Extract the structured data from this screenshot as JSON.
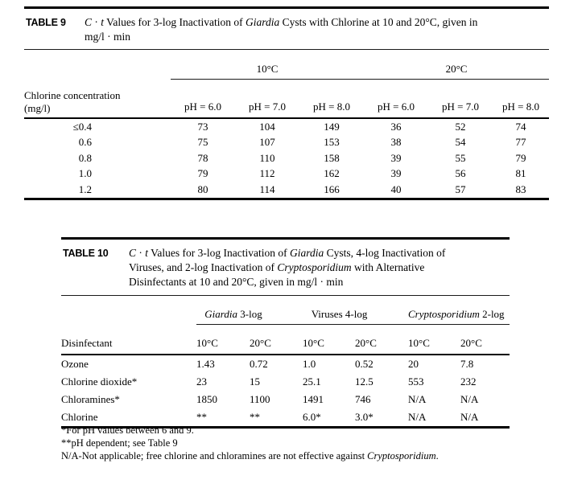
{
  "page": {
    "background": "#ffffff",
    "text_color": "#000000"
  },
  "table9": {
    "label": "TABLE 9",
    "title": [
      [
        {
          "t": "C",
          "i": true
        },
        {
          "t": " · ",
          "i": false
        },
        {
          "t": "t",
          "i": true
        },
        {
          "t": " Values for 3-log Inactivation of ",
          "i": false
        },
        {
          "t": "Giardia",
          "i": true
        },
        {
          "t": " Cysts with Chlorine at 10 and 20°C, given in",
          "i": false
        }
      ],
      [
        {
          "t": "mg/l · min",
          "i": false
        }
      ]
    ],
    "temp_groups": [
      "10°C",
      "20°C"
    ],
    "row_header_line1": "Chlorine concentration",
    "row_header_line2": "(mg/l)",
    "ph_headers": [
      "pH = 6.0",
      "pH = 7.0",
      "pH = 8.0",
      "pH = 6.0",
      "pH = 7.0",
      "pH = 8.0"
    ],
    "rows": [
      {
        "label": "≤0.4",
        "values": [
          "73",
          "104",
          "149",
          "36",
          "52",
          "74"
        ]
      },
      {
        "label": "0.6",
        "values": [
          "75",
          "107",
          "153",
          "38",
          "54",
          "77"
        ]
      },
      {
        "label": "0.8",
        "values": [
          "78",
          "110",
          "158",
          "39",
          "55",
          "79"
        ]
      },
      {
        "label": "1.0",
        "values": [
          "79",
          "112",
          "162",
          "39",
          "56",
          "81"
        ]
      },
      {
        "label": "1.2",
        "values": [
          "80",
          "114",
          "166",
          "40",
          "57",
          "83"
        ]
      }
    ]
  },
  "table10": {
    "label": "TABLE 10",
    "title": [
      [
        {
          "t": "C",
          "i": true
        },
        {
          "t": " · ",
          "i": false
        },
        {
          "t": "t",
          "i": true
        },
        {
          "t": " Values for 3-log Inactivation of ",
          "i": false
        },
        {
          "t": "Giardia",
          "i": true
        },
        {
          "t": " Cysts, 4-log Inactivation of",
          "i": false
        }
      ],
      [
        {
          "t": "Viruses, and 2-log Inactivation of ",
          "i": false
        },
        {
          "t": "Cryptosporidium",
          "i": true
        },
        {
          "t": " with Alternative",
          "i": false
        }
      ],
      [
        {
          "t": "Disinfectants at 10 and 20°C, given in mg/l · min",
          "i": false
        }
      ]
    ],
    "group_headers": [
      [
        {
          "t": "Giardia",
          "i": true
        },
        {
          "t": " 3-log",
          "i": false
        }
      ],
      [
        {
          "t": "Viruses 4-log",
          "i": false
        }
      ],
      [
        {
          "t": "Cryptosporidium",
          "i": true
        },
        {
          "t": " 2-log",
          "i": false
        }
      ]
    ],
    "col_header": "Disinfectant",
    "temp_headers": [
      "10°C",
      "20°C",
      "10°C",
      "20°C",
      "10°C",
      "20°C"
    ],
    "rows": [
      {
        "label": "Ozone",
        "values": [
          "1.43",
          "0.72",
          "1.0",
          "0.52",
          "20",
          "7.8"
        ]
      },
      {
        "label": "Chlorine dioxide*",
        "values": [
          "23",
          "15",
          "25.1",
          "12.5",
          "553",
          "232"
        ]
      },
      {
        "label": "Chloramines*",
        "values": [
          "1850",
          "1100",
          "1491",
          "746",
          "N/A",
          "N/A"
        ]
      },
      {
        "label": "Chlorine",
        "values": [
          "**",
          "**",
          "6.0*",
          "3.0*",
          "N/A",
          "N/A"
        ]
      }
    ]
  },
  "footnotes": [
    [
      {
        "t": "*For pH values between 6 and 9.",
        "i": false
      }
    ],
    [
      {
        "t": "**pH dependent; see Table 9",
        "i": false
      }
    ],
    [
      {
        "t": "N/A-Not applicable; free chlorine and chloramines are not effective against ",
        "i": false
      },
      {
        "t": "Cryptosporidium",
        "i": true
      },
      {
        "t": ".",
        "i": false
      }
    ]
  ]
}
